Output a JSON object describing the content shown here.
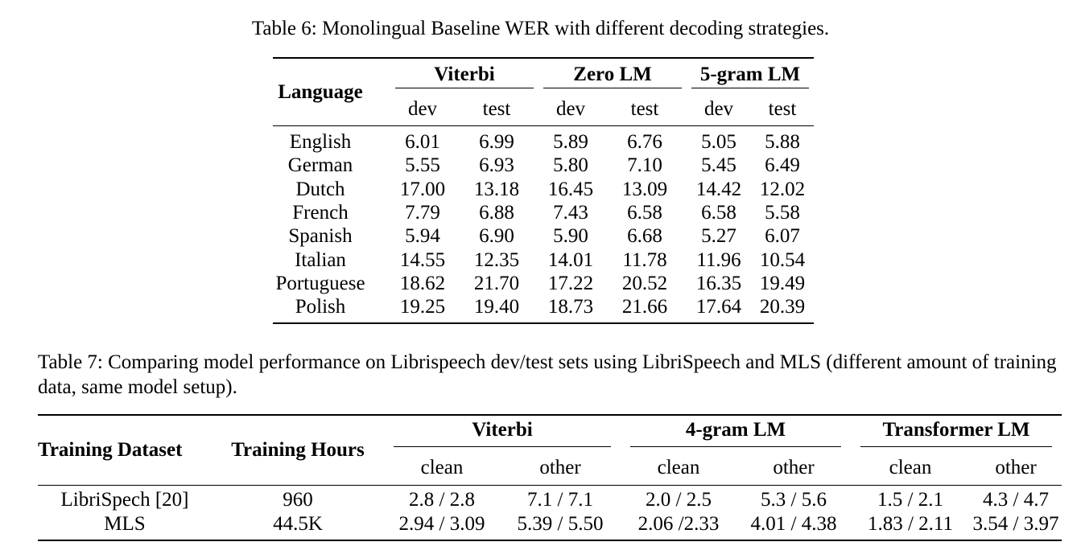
{
  "table6": {
    "caption": "Table 6: Monolingual Baseline WER with different decoding strategies.",
    "row_header": "Language",
    "groups": [
      "Viterbi",
      "Zero LM",
      "5-gram LM"
    ],
    "subcols": [
      "dev",
      "test",
      "dev",
      "test",
      "dev",
      "test"
    ],
    "rows": [
      {
        "label": "English",
        "values": [
          "6.01",
          "6.99",
          "5.89",
          "6.76",
          "5.05",
          "5.88"
        ]
      },
      {
        "label": "German",
        "values": [
          "5.55",
          "6.93",
          "5.80",
          "7.10",
          "5.45",
          "6.49"
        ]
      },
      {
        "label": "Dutch",
        "values": [
          "17.00",
          "13.18",
          "16.45",
          "13.09",
          "14.42",
          "12.02"
        ]
      },
      {
        "label": "French",
        "values": [
          "7.79",
          "6.88",
          "7.43",
          "6.58",
          "6.58",
          "5.58"
        ]
      },
      {
        "label": "Spanish",
        "values": [
          "5.94",
          "6.90",
          "5.90",
          "6.68",
          "5.27",
          "6.07"
        ]
      },
      {
        "label": "Italian",
        "values": [
          "14.55",
          "12.35",
          "14.01",
          "11.78",
          "11.96",
          "10.54"
        ]
      },
      {
        "label": "Portuguese",
        "values": [
          "18.62",
          "21.70",
          "17.22",
          "20.52",
          "16.35",
          "19.49"
        ]
      },
      {
        "label": "Polish",
        "values": [
          "19.25",
          "19.40",
          "18.73",
          "21.66",
          "17.64",
          "20.39"
        ]
      }
    ]
  },
  "table7": {
    "caption": "Table 7: Comparing model performance on Librispeech dev/test sets using LibriSpeech and MLS (different amount of training data, same model setup).",
    "col_dataset": "Training Dataset",
    "col_hours": "Training Hours",
    "groups": [
      "Viterbi",
      "4-gram LM",
      "Transformer LM"
    ],
    "subcols": [
      "clean",
      "other",
      "clean",
      "other",
      "clean",
      "other"
    ],
    "rows": [
      {
        "dataset": "LibriSpech [20]",
        "hours": "960",
        "values": [
          "2.8 / 2.8",
          "7.1 / 7.1",
          "2.0 / 2.5",
          "5.3 / 5.6",
          "1.5 / 2.1",
          "4.3 / 4.7"
        ]
      },
      {
        "dataset": "MLS",
        "hours": "44.5K",
        "values": [
          "2.94 / 3.09",
          "5.39 / 5.50",
          "2.06 /2.33",
          "4.01 / 4.38",
          "1.83 / 2.11",
          "3.54 / 3.97"
        ]
      }
    ]
  }
}
